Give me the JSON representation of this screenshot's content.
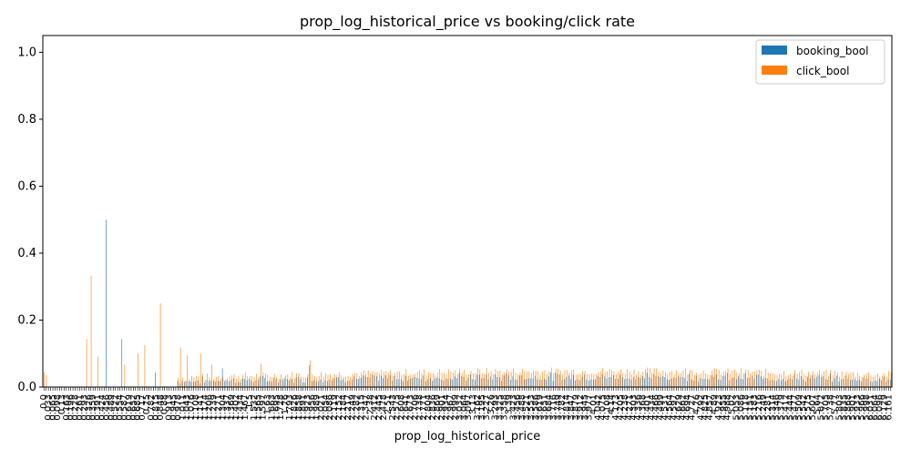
{
  "chart_data": {
    "type": "bar",
    "title": "prop_log_historical_price vs booking/click rate",
    "xlabel": "prop_log_historical_price",
    "ylabel": "",
    "ylim": [
      0,
      1.05
    ],
    "yticks": [
      0.0,
      0.2,
      0.4,
      0.6,
      0.8,
      1.0
    ],
    "ytick_labels": [
      "0.0",
      "0.2",
      "0.4",
      "0.6",
      "0.8",
      "1.0"
    ],
    "legend": {
      "position": "top-right"
    },
    "grid": false,
    "num_categories": 380,
    "first_category_label": "0.0",
    "series": [
      {
        "name": "booking_bool",
        "color": "#1f77b4"
      },
      {
        "name": "click_bool",
        "color": "#ff7f0e"
      }
    ],
    "notable_points": [
      {
        "series": "click_bool",
        "index": 0,
        "value": 0.045
      },
      {
        "series": "click_bool",
        "index": 1,
        "value": 0.035
      },
      {
        "series": "click_bool",
        "index": 19,
        "value": 0.143
      },
      {
        "series": "click_bool",
        "index": 21,
        "value": 0.333
      },
      {
        "series": "click_bool",
        "index": 24,
        "value": 0.091
      },
      {
        "series": "booking_bool",
        "index": 28,
        "value": 0.5
      },
      {
        "series": "booking_bool",
        "index": 35,
        "value": 0.143
      },
      {
        "series": "click_bool",
        "index": 36,
        "value": 0.067
      },
      {
        "series": "click_bool",
        "index": 42,
        "value": 0.1
      },
      {
        "series": "click_bool",
        "index": 45,
        "value": 0.125
      },
      {
        "series": "booking_bool",
        "index": 50,
        "value": 0.043
      },
      {
        "series": "click_bool",
        "index": 52,
        "value": 0.25
      },
      {
        "series": "click_bool",
        "index": 61,
        "value": 0.118
      },
      {
        "series": "click_bool",
        "index": 64,
        "value": 0.095
      },
      {
        "series": "click_bool",
        "index": 70,
        "value": 0.1
      },
      {
        "series": "click_bool",
        "index": 75,
        "value": 0.067
      },
      {
        "series": "booking_bool",
        "index": 80,
        "value": 0.056
      },
      {
        "series": "click_bool",
        "index": 97,
        "value": 0.07
      },
      {
        "series": "click_bool",
        "index": 119,
        "value": 0.08
      },
      {
        "series": "booking_bool",
        "index": 119,
        "value": 0.065
      }
    ]
  }
}
